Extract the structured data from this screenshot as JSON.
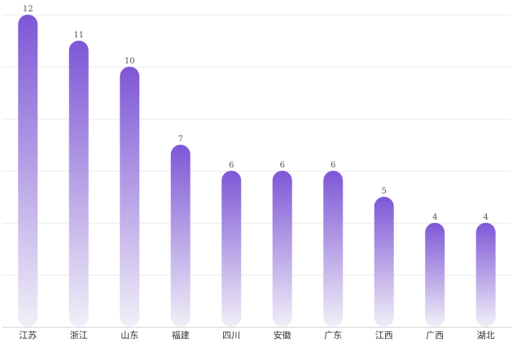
{
  "chart_data": {
    "type": "bar",
    "title": "",
    "xlabel": "",
    "ylabel": "",
    "categories": [
      "江苏",
      "浙江",
      "山东",
      "福建",
      "四川",
      "安徽",
      "广东",
      "江西",
      "广西",
      "湖北"
    ],
    "values": [
      12,
      11,
      10,
      7,
      6,
      6,
      6,
      5,
      4,
      4
    ],
    "ylim": [
      0,
      12
    ],
    "grid": true,
    "legend": "none",
    "data_labels": true
  },
  "colors": {
    "bar_top": "#7e57d6",
    "bar_bottom": "#f1eff7"
  }
}
